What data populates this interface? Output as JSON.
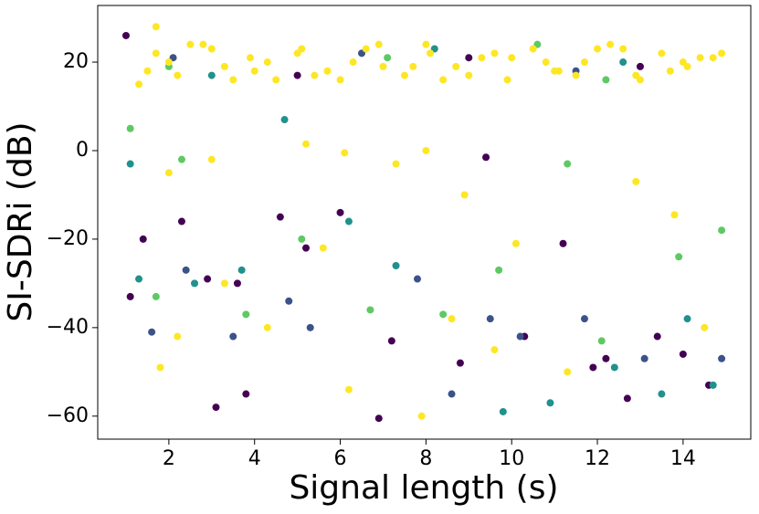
{
  "chart_data": {
    "type": "scatter",
    "x_label": "Signal length (s)",
    "y_label": "SI-SDRi (dB)",
    "xlim": [
      0.34,
      15.58
    ],
    "ylim": [
      -65.2,
      32.8
    ],
    "xticks": [
      2,
      4,
      6,
      8,
      10,
      12,
      14
    ],
    "yticks": [
      {
        "value": -60,
        "label": "−60"
      },
      {
        "value": -40,
        "label": "−40"
      },
      {
        "value": -20,
        "label": "−20"
      },
      0,
      20
    ],
    "series": [
      {
        "color": "#440154",
        "x": [
          1.1,
          1.4,
          2.3,
          2.9,
          3.1,
          3.8,
          4.6,
          5.2,
          6.0,
          6.9,
          7.2,
          8.8,
          9.4,
          10.3,
          11.2,
          11.9,
          12.7,
          13.4,
          14.0,
          14.6,
          1.0,
          5.0,
          9.0,
          13.0,
          12.2,
          3.6
        ],
        "values": [
          -33,
          -20,
          -16,
          -29,
          -58,
          -55,
          -15,
          -22,
          -14,
          -60.5,
          -43,
          -48,
          -1.5,
          -42,
          -21,
          -49,
          -56,
          -42,
          -46,
          -53,
          26,
          17,
          21,
          19,
          -47,
          -30
        ]
      },
      {
        "color": "#3b528b",
        "x": [
          1.6,
          2.4,
          3.5,
          4.8,
          5.3,
          7.8,
          8.6,
          9.5,
          10.2,
          11.7,
          13.1,
          14.9,
          2.1,
          6.5,
          11.5
        ],
        "values": [
          -41,
          -27,
          -42,
          -34,
          -40,
          -29,
          -55,
          -38,
          -42,
          -38,
          -47,
          -47,
          21,
          22,
          18
        ]
      },
      {
        "color": "#21918c",
        "x": [
          1.1,
          1.3,
          2.6,
          3.7,
          4.7,
          6.2,
          7.3,
          9.8,
          10.9,
          12.4,
          13.5,
          14.1,
          14.7,
          3.0,
          8.2,
          12.6
        ],
        "values": [
          -3,
          -29,
          -30,
          -27,
          7,
          -16,
          -26,
          -59,
          -57,
          -49,
          -55,
          -38,
          -53,
          17,
          23,
          20
        ]
      },
      {
        "color": "#5ec962",
        "x": [
          1.1,
          1.7,
          2.3,
          3.8,
          5.1,
          6.7,
          8.4,
          9.7,
          11.3,
          12.1,
          13.9,
          14.9,
          2.0,
          7.1,
          10.6,
          12.2
        ],
        "values": [
          5,
          -33,
          -2,
          -37,
          -20,
          -36,
          -37,
          -27,
          -3,
          -43,
          -24,
          -18,
          19,
          21,
          24,
          16
        ]
      },
      {
        "color": "#fde725",
        "x": [
          1.7,
          2.2,
          2.8,
          3.3,
          3.9,
          4.5,
          5.1,
          5.7,
          6.3,
          6.9,
          7.5,
          8.1,
          8.7,
          9.3,
          9.9,
          10.5,
          11.1,
          11.7,
          12.3,
          12.9,
          13.5,
          14.1,
          14.7,
          1.3,
          2.0,
          3.0,
          4.0,
          5.0,
          6.0,
          7.0,
          8.0,
          9.0,
          10.0,
          11.0,
          12.0,
          13.0,
          14.0,
          14.9,
          1.5,
          2.5,
          3.5,
          4.3,
          5.4,
          6.6,
          7.7,
          8.4,
          9.6,
          10.8,
          11.5,
          12.6,
          13.7,
          14.4,
          1.7,
          2.0,
          3.0,
          5.2,
          6.1,
          7.3,
          8.0,
          8.9,
          10.1,
          11.3,
          12.9,
          13.8,
          14.5,
          1.8,
          2.2,
          6.2,
          7.9,
          9.6,
          8.6,
          4.3,
          5.6,
          3.3
        ],
        "values": [
          22,
          17,
          24,
          19,
          21,
          16,
          23,
          18,
          20,
          24,
          17,
          22,
          19,
          21,
          16,
          23,
          18,
          20,
          24,
          17,
          22,
          19,
          21,
          15,
          20,
          23,
          18,
          22,
          16,
          19,
          24,
          17,
          21,
          18,
          23,
          16,
          20,
          22,
          18,
          24,
          16,
          20,
          17,
          23,
          19,
          16,
          22,
          20,
          17,
          23,
          18,
          21,
          28,
          -5,
          -2,
          1.5,
          -0.5,
          -3,
          0,
          -10,
          -21,
          -50,
          -7,
          -14.5,
          -40,
          -49,
          -42,
          -54,
          -60,
          -45,
          -38,
          -40,
          -22,
          -30
        ]
      }
    ]
  }
}
